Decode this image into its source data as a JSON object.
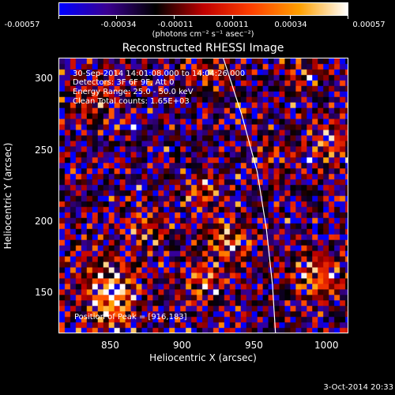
{
  "colorbar": {
    "ticks": [
      "-0.00057",
      "-0.00034",
      "-0.00011",
      "0.00011",
      "0.00034",
      "0.00057"
    ],
    "units": "(photons cm⁻² s⁻¹ asec⁻²)"
  },
  "title": "Reconstructed RHESSI Image",
  "info": {
    "time_range": "30-Sep-2014 14:01:08.000 to 14:04:26.000",
    "detectors": "Detectors: 3F 6F 9F, Att 0",
    "energy_range": "Energy Range: 25.0 - 50.0 keV",
    "method": "Clean     Total counts: 1.65E+03",
    "peak": "Position of Peak = [916,183]"
  },
  "axes": {
    "xlabel": "Heliocentric X (arcsec)",
    "ylabel": "Heliocentric Y (arcsec)",
    "xticks": [
      "850",
      "900",
      "950",
      "1000"
    ],
    "yticks": [
      "150",
      "200",
      "250",
      "300"
    ]
  },
  "timestamp": "3-Oct-2014 20:33",
  "chart_data": {
    "type": "heatmap",
    "title": "Reconstructed RHESSI Image",
    "xlabel": "Heliocentric X (arcsec)",
    "ylabel": "Heliocentric Y (arcsec)",
    "xlim": [
      811,
      1000
    ],
    "ylim": [
      115,
      310
    ],
    "xticks": [
      850,
      900,
      950,
      1000
    ],
    "yticks": [
      150,
      200,
      250,
      300
    ],
    "colorbar_range": [
      -0.00057,
      0.00057
    ],
    "colorbar_ticks": [
      -0.00057,
      -0.00034,
      -0.00011,
      0.00011,
      0.00034,
      0.00057
    ],
    "colorbar_units": "(photons cm⁻² s⁻¹ asec⁻²)",
    "limb_curve": [
      [
        918,
        310
      ],
      [
        930,
        270
      ],
      [
        940,
        230
      ],
      [
        946,
        190
      ],
      [
        950,
        150
      ],
      [
        952,
        115
      ]
    ],
    "peak_position": [
      916,
      183
    ],
    "colormap": [
      "#0000ff",
      "#3a0090",
      "#000000",
      "#c00000",
      "#ff4000",
      "#ffa000",
      "#ffffff"
    ]
  }
}
